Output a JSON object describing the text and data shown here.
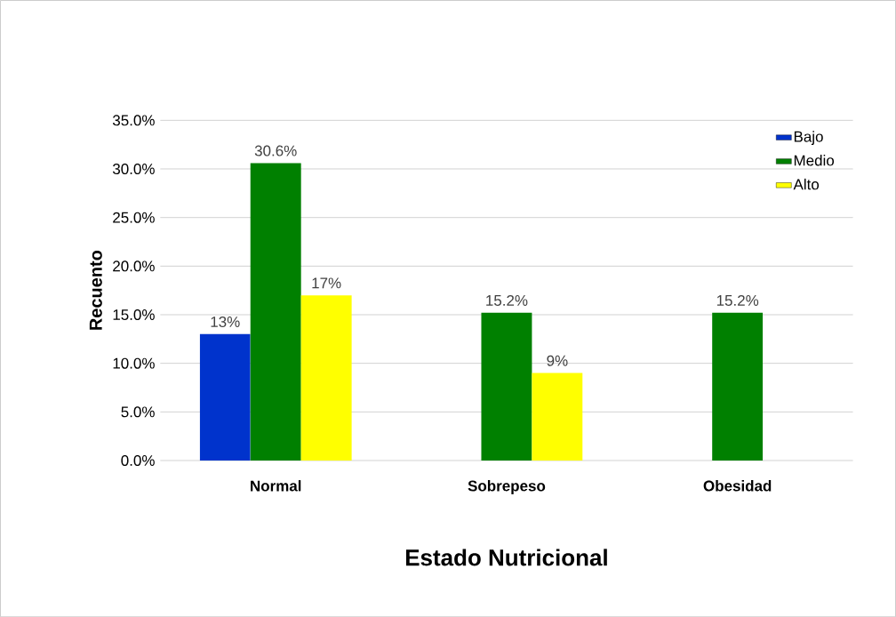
{
  "chart_data": {
    "type": "bar",
    "xlabel": "Estado Nutricional",
    "ylabel": "Recuento",
    "categories": [
      "Normal",
      "Sobrepeso",
      "Obesidad"
    ],
    "series": [
      {
        "name": "Bajo",
        "color": "#0033cc",
        "values": [
          13,
          null,
          null
        ],
        "value_labels": [
          "13%",
          null,
          null
        ]
      },
      {
        "name": "Medio",
        "color": "#008000",
        "values": [
          30.6,
          15.2,
          15.2
        ],
        "value_labels": [
          "30.6%",
          "15.2%",
          "15.2%"
        ]
      },
      {
        "name": "Alto",
        "color": "#ffff00",
        "values": [
          17,
          9,
          null
        ],
        "value_labels": [
          "17%",
          "9%",
          null
        ]
      }
    ],
    "ylim": [
      0,
      35
    ],
    "yticks": [
      {
        "value": 0,
        "label": "0.0%"
      },
      {
        "value": 5,
        "label": "5.0%"
      },
      {
        "value": 10,
        "label": "10.0%"
      },
      {
        "value": 15,
        "label": "15.0%"
      },
      {
        "value": 20,
        "label": "20.0%"
      },
      {
        "value": 25,
        "label": "25.0%"
      },
      {
        "value": 30,
        "label": "30.0%"
      },
      {
        "value": 35,
        "label": "35.0%"
      }
    ],
    "grid": "y",
    "legend": "top right"
  }
}
